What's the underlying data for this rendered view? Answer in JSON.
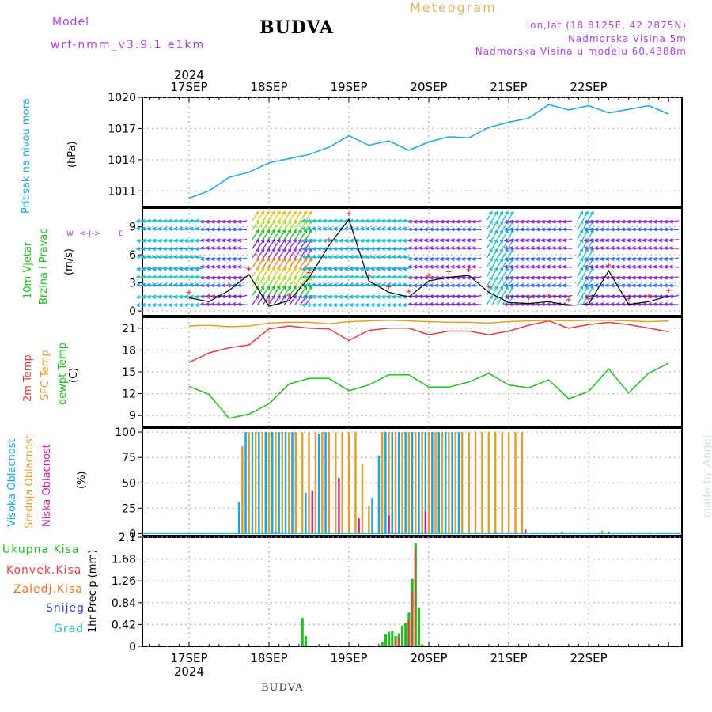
{
  "header": {
    "model_label": "Model",
    "model_name": "wrf-nmm_v3.9.1  e1km",
    "title": "BUDVA",
    "meteogram_label": "Meteogram",
    "lonlat": "lon,lat (18.8125E, 42.2875N)",
    "altitude": "Nadmorska Visina 5m",
    "model_altitude": "Nadmorska Visina u modelu 60.4388m"
  },
  "footer": {
    "label": "BUDVA",
    "credit": "made by Angel"
  },
  "time_axis": {
    "year": "2024",
    "labels": [
      "17SEP",
      "18SEP",
      "19SEP",
      "20SEP",
      "21SEP",
      "22SEP"
    ]
  },
  "panels": {
    "pressure": {
      "label_line1": "Pritisak na nivou mora",
      "unit": "(hPa)",
      "ticks": [
        "1020",
        "1017",
        "1014",
        "1011"
      ]
    },
    "wind": {
      "label_line1": "10m Vjetar",
      "label_line2": "Brzina i Pravac",
      "unit": "(m/s)",
      "ticks": [
        "9",
        "6",
        "3",
        "0"
      ],
      "compass_w": "W",
      "compass_e": "E",
      "compass_n": "N",
      "compass_s": "S"
    },
    "temp": {
      "label_2m": "2m Temp",
      "label_sfc": "SFC Temp",
      "label_dew": "dewpt Temp",
      "unit": "(C)",
      "ticks": [
        "21",
        "18",
        "15",
        "12",
        "9"
      ]
    },
    "cloud": {
      "label_high": "Visoka Oblacnost",
      "label_mid": "Srednja Oblacnost",
      "label_low": "Niska Oblacnost",
      "unit": "(%)",
      "ticks": [
        "100",
        "75",
        "50",
        "25",
        "0"
      ]
    },
    "precip": {
      "legend": [
        "Ukupna Kisa",
        "Konvek.Kisa",
        "Zaledj.Kisa",
        "Snijeg",
        "Grad"
      ],
      "unit": "1hr Precip (mm)",
      "ticks": [
        "2.1",
        "1.68",
        "1.26",
        "0.84",
        "0.42",
        "0"
      ]
    }
  },
  "colors": {
    "pressure": "#1aa7e0",
    "temp_2m": "#e04040",
    "temp_sfc": "#e0a030",
    "dewpt": "#20c020",
    "cloud_high": "#1aa7e0",
    "cloud_mid": "#e0a030",
    "cloud_low": "#d020a0",
    "precip_total": "#20c020",
    "precip_conv": "#e04040",
    "precip_frz": "#f07020",
    "snow": "#4040e0",
    "grad": "#20c0c0",
    "model": "#b040e0",
    "meteogram": "#e8b060"
  },
  "chart_data": [
    {
      "type": "line",
      "title": "Pritisak na nivou mora",
      "ylabel": "(hPa)",
      "ylim": [
        1009.5,
        1020
      ],
      "x_hours": [
        0,
        6,
        12,
        18,
        24,
        30,
        36,
        42,
        48,
        54,
        60,
        66,
        72,
        78,
        84,
        90,
        96,
        102,
        108,
        114,
        120,
        126,
        138,
        144
      ],
      "values": [
        1010.3,
        1011.0,
        1012.3,
        1012.8,
        1013.7,
        1014.1,
        1014.5,
        1015.2,
        1016.3,
        1015.4,
        1015.8,
        1014.9,
        1015.7,
        1016.2,
        1016.1,
        1017.1,
        1017.6,
        1018.0,
        1019.3,
        1018.8,
        1019.2,
        1018.5,
        1019.2,
        1018.4
      ]
    },
    {
      "type": "line",
      "title": "10m Vjetar Brzina i Pravac",
      "ylabel": "(m/s)",
      "ylim": [
        -0.5,
        11
      ],
      "x_hours": [
        0,
        6,
        12,
        18,
        24,
        30,
        36,
        42,
        48,
        54,
        60,
        66,
        72,
        78,
        84,
        90,
        96,
        102,
        108,
        114,
        120,
        126,
        132,
        138,
        144
      ],
      "values": [
        1.4,
        1.0,
        2.2,
        3.9,
        0.5,
        1.1,
        3.5,
        7.0,
        9.8,
        3.2,
        2.0,
        1.5,
        3.2,
        3.6,
        3.8,
        2.0,
        0.9,
        0.8,
        1.0,
        0.6,
        0.7,
        4.3,
        0.7,
        1.0,
        1.6
      ]
    },
    {
      "type": "line",
      "title": "Temperatura",
      "ylabel": "(C)",
      "ylim": [
        7.5,
        22.5
      ],
      "x_hours": [
        0,
        6,
        12,
        18,
        24,
        30,
        36,
        42,
        48,
        54,
        60,
        66,
        72,
        78,
        84,
        90,
        96,
        102,
        108,
        114,
        120,
        126,
        132,
        138,
        144
      ],
      "series": [
        {
          "name": "2m Temp",
          "values": [
            16.3,
            17.6,
            18.3,
            18.7,
            20.9,
            21.3,
            21.0,
            20.9,
            19.3,
            20.7,
            21.0,
            21.0,
            20.1,
            20.6,
            20.6,
            20.1,
            20.6,
            21.4,
            22.0,
            21.0,
            21.5,
            21.8,
            21.5,
            21.0,
            20.5
          ]
        },
        {
          "name": "SFC Temp",
          "values": [
            21.3,
            21.4,
            21.2,
            21.3,
            21.7,
            21.8,
            21.8,
            21.6,
            21.9,
            22.0,
            22.1,
            22.0,
            21.9,
            21.8,
            21.8,
            21.7,
            21.9,
            22.0,
            22.1,
            22.0,
            22.1,
            22.1,
            22.0,
            21.9,
            22.0
          ]
        },
        {
          "name": "dewpt Temp",
          "values": [
            13.0,
            11.9,
            8.6,
            9.2,
            10.6,
            13.3,
            14.1,
            14.1,
            12.4,
            13.2,
            14.6,
            14.6,
            12.9,
            12.9,
            13.6,
            14.8,
            13.2,
            12.8,
            13.9,
            11.3,
            12.3,
            15.4,
            12.1,
            14.8,
            16.2
          ]
        }
      ]
    },
    {
      "type": "bar",
      "title": "Oblacnost",
      "ylabel": "(%)",
      "ylim": [
        -2,
        104
      ],
      "series": [
        {
          "name": "Visoka Oblacnost",
          "x_hours": [
            15,
            17,
            19,
            21,
            23,
            25,
            27,
            29,
            31,
            35,
            39,
            41,
            55,
            57,
            59,
            61,
            63,
            65,
            67,
            69,
            71,
            73,
            75,
            77,
            79,
            81
          ],
          "values": [
            31,
            100,
            100,
            100,
            100,
            100,
            100,
            100,
            100,
            40,
            98,
            100,
            35,
            77,
            100,
            100,
            100,
            100,
            100,
            100,
            100,
            100,
            100,
            100,
            100,
            100
          ]
        },
        {
          "name": "Srednja Oblacnost",
          "x_hours": [
            16,
            18,
            20,
            22,
            24,
            26,
            28,
            30,
            32,
            34,
            36,
            38,
            40,
            42,
            44,
            46,
            48,
            50,
            52,
            54,
            58,
            60,
            62,
            64,
            66,
            68,
            70,
            72,
            74,
            76,
            78,
            80,
            82,
            84,
            86,
            88,
            90,
            92,
            94,
            96,
            98,
            100,
            124
          ],
          "values": [
            86,
            100,
            100,
            100,
            100,
            100,
            100,
            100,
            100,
            100,
            100,
            100,
            100,
            100,
            100,
            100,
            100,
            100,
            68,
            27,
            100,
            100,
            100,
            100,
            100,
            100,
            100,
            100,
            100,
            100,
            100,
            100,
            100,
            100,
            100,
            100,
            100,
            100,
            100,
            100,
            100,
            100,
            3
          ]
        },
        {
          "name": "Niska Oblacnost",
          "x_hours": [
            14,
            26,
            37,
            45,
            51,
            60,
            71,
            92,
            101,
            112,
            126
          ],
          "values": [
            0,
            1,
            42,
            55,
            15,
            18,
            22,
            1,
            4,
            2,
            2
          ]
        }
      ]
    },
    {
      "type": "bar",
      "title": "1hr Precip",
      "ylabel": "1hr Precip (mm)",
      "ylim": [
        0,
        2.1
      ],
      "series": [
        {
          "name": "Ukupna Kisa",
          "x_hours": [
            34,
            35,
            58,
            59,
            60,
            61,
            62,
            63,
            64,
            65,
            66,
            67,
            68,
            69,
            70
          ],
          "values": [
            0.55,
            0.2,
            0.08,
            0.23,
            0.28,
            0.3,
            0.2,
            0.25,
            0.4,
            0.45,
            0.65,
            1.3,
            1.98,
            0.75,
            0.04
          ]
        },
        {
          "name": "Konvek.Kisa",
          "x_hours": [
            62,
            63,
            66,
            67,
            68
          ],
          "values": [
            0.12,
            0.18,
            0.5,
            1.05,
            1.9
          ]
        }
      ]
    }
  ]
}
